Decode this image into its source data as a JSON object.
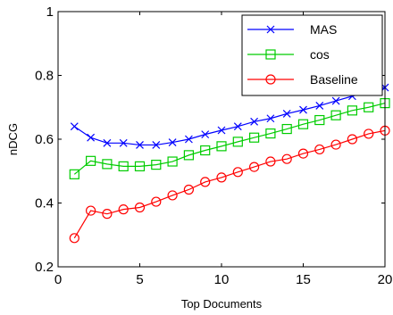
{
  "chart_data": {
    "type": "line",
    "xlabel": "Top Documents",
    "ylabel": "nDCG",
    "xlim": [
      0,
      20
    ],
    "ylim": [
      0.2,
      1
    ],
    "x_ticks": [
      "0",
      "5",
      "10",
      "15",
      "20"
    ],
    "y_ticks": [
      "0.2",
      "0.4",
      "0.6",
      "0.8",
      "1"
    ],
    "x": [
      1,
      2,
      3,
      4,
      5,
      6,
      7,
      8,
      9,
      10,
      11,
      12,
      13,
      14,
      15,
      16,
      17,
      18,
      19,
      20
    ],
    "series": [
      {
        "name": "MAS",
        "color": "#0000ff",
        "marker": "x",
        "values": [
          0.64,
          0.605,
          0.588,
          0.588,
          0.582,
          0.582,
          0.59,
          0.6,
          0.615,
          0.628,
          0.64,
          0.655,
          0.665,
          0.68,
          0.692,
          0.705,
          0.72,
          0.735,
          0.75,
          0.762
        ]
      },
      {
        "name": "cos",
        "color": "#00cc00",
        "marker": "square",
        "values": [
          0.49,
          0.532,
          0.522,
          0.515,
          0.515,
          0.52,
          0.53,
          0.55,
          0.565,
          0.578,
          0.592,
          0.605,
          0.618,
          0.632,
          0.647,
          0.66,
          0.675,
          0.69,
          0.7,
          0.713
        ]
      },
      {
        "name": "Baseline",
        "color": "#ff0000",
        "marker": "circle",
        "values": [
          0.29,
          0.376,
          0.366,
          0.38,
          0.386,
          0.404,
          0.424,
          0.442,
          0.466,
          0.48,
          0.497,
          0.513,
          0.53,
          0.538,
          0.555,
          0.568,
          0.583,
          0.6,
          0.617,
          0.627
        ]
      }
    ],
    "grid": false,
    "legend_position": "top-right"
  }
}
